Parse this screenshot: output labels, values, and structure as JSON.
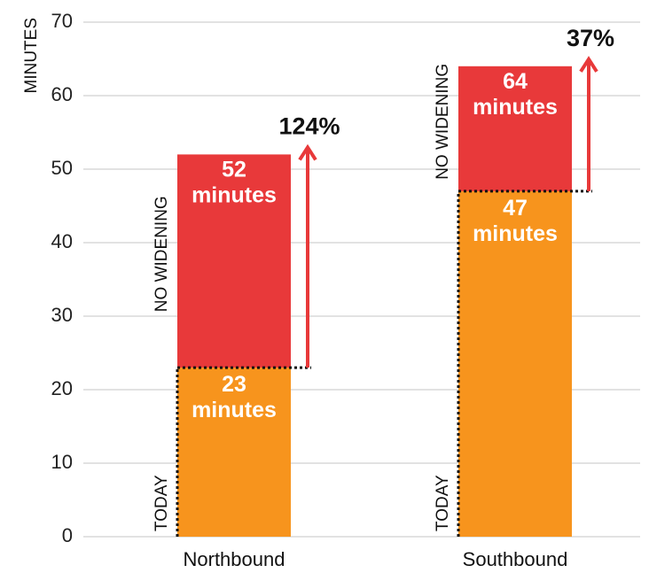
{
  "chart_data": {
    "type": "overlap_bar",
    "y_label": "MINUTES",
    "categories": [
      "Northbound",
      "Southbound"
    ],
    "series": [
      {
        "name": "TODAY",
        "color": "#f7941d",
        "values": [
          23,
          47
        ],
        "value_labels": [
          "23 minutes",
          "47 minutes"
        ]
      },
      {
        "name": "NO WIDENING",
        "color": "#e8393a",
        "values": [
          52,
          64
        ],
        "value_labels": [
          "52 minutes",
          "64 minutes"
        ]
      }
    ],
    "change_labels": [
      "124%",
      "37%"
    ],
    "ylim": [
      0,
      70
    ],
    "yticks": [
      0,
      10,
      20,
      30,
      40,
      50,
      60,
      70
    ],
    "grid": true
  }
}
